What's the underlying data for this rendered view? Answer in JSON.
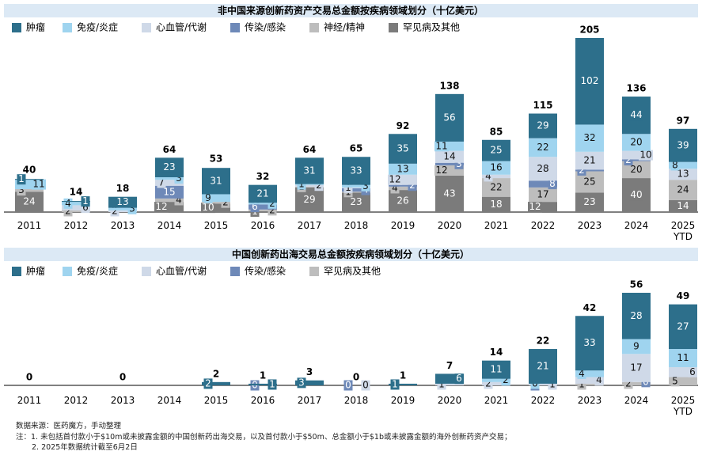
{
  "chart_data": [
    {
      "type": "bar",
      "stacked": true,
      "title": "非中国来源创新药资产交易总金额按疾病领域划分（十亿美元）",
      "categories": [
        "2011",
        "2012",
        "2013",
        "2014",
        "2015",
        "2016",
        "2017",
        "2018",
        "2019",
        "2020",
        "2021",
        "2022",
        "2023",
        "2024",
        "2025\nYTD"
      ],
      "totals": [
        40,
        14,
        18,
        64,
        53,
        32,
        64,
        65,
        92,
        138,
        85,
        115,
        205,
        136,
        97
      ],
      "series": [
        {
          "name": "罕见病及其他",
          "color": "#7b7b7b",
          "values": [
            24,
            null,
            null,
            12,
            10,
            1,
            29,
            23,
            26,
            43,
            18,
            12,
            23,
            40,
            14
          ]
        },
        {
          "name": "神经/精神",
          "color": "#bdbdbd",
          "values": [
            3,
            2,
            null,
            4,
            2,
            2,
            1,
            1,
            4,
            12,
            22,
            17,
            25,
            20,
            24
          ]
        },
        {
          "name": "传染/感染",
          "color": "#6e89b8",
          "values": [
            null,
            null,
            null,
            15,
            null,
            6,
            null,
            4,
            2,
            3,
            null,
            8,
            2,
            2,
            null
          ]
        },
        {
          "name": "心血管/代谢",
          "color": "#cfd9e8",
          "values": [
            null,
            6,
            2,
            7,
            null,
            null,
            2,
            1,
            12,
            14,
            4,
            28,
            21,
            10,
            13
          ]
        },
        {
          "name": "免疫/炎症",
          "color": "#9fd4ef",
          "values": [
            11,
            4,
            3,
            3,
            9,
            2,
            1,
            3,
            13,
            11,
            16,
            22,
            32,
            20,
            8
          ]
        },
        {
          "name": "肿瘤",
          "color": "#2d6f8b",
          "values": [
            1,
            1,
            13,
            23,
            31,
            21,
            31,
            33,
            35,
            56,
            25,
            29,
            102,
            44,
            39
          ]
        }
      ]
    },
    {
      "type": "bar",
      "stacked": true,
      "title": "中国创新药出海交易总金额按疾病领域划分（十亿美元）",
      "categories": [
        "2011",
        "2012",
        "2013",
        "2014",
        "2015",
        "2016",
        "2017",
        "2018",
        "2019",
        "2020",
        "2021",
        "2022",
        "2023",
        "2024",
        "2025\nYTD"
      ],
      "totals": [
        0,
        null,
        0,
        null,
        2,
        1,
        3,
        0,
        1,
        7,
        14,
        22,
        42,
        56,
        49
      ],
      "series": [
        {
          "name": "罕见病及其他",
          "color": "#bdbdbd",
          "values": [
            null,
            null,
            null,
            null,
            null,
            null,
            null,
            null,
            null,
            null,
            null,
            null,
            1,
            2,
            5
          ]
        },
        {
          "name": "传染/感染",
          "color": "#6e89b8",
          "values": [
            null,
            null,
            null,
            null,
            null,
            0,
            null,
            0,
            null,
            null,
            null,
            0,
            null,
            0,
            null
          ]
        },
        {
          "name": "心血管/代谢",
          "color": "#cfd9e8",
          "values": [
            null,
            null,
            null,
            null,
            null,
            null,
            null,
            0,
            null,
            1,
            2,
            1,
            4,
            17,
            6
          ]
        },
        {
          "name": "免疫/炎症",
          "color": "#9fd4ef",
          "values": [
            null,
            null,
            null,
            null,
            null,
            null,
            null,
            null,
            null,
            null,
            2,
            0,
            4,
            9,
            11
          ]
        },
        {
          "name": "肿瘤",
          "color": "#2d6f8b",
          "values": [
            null,
            null,
            null,
            null,
            2,
            1,
            3,
            null,
            1,
            6,
            11,
            21,
            33,
            28,
            27
          ]
        }
      ]
    }
  ],
  "source": "数据来源：医药魔方，手动整理",
  "notes": [
    "注：1. 未包括首付款小于$10m或未披露金额的中国创新药出海交易，以及首付款小于$50m、总金额小于$1b或未披露金额的海外创新药资产交易；",
    "2. 2025年数据统计截至6月2日"
  ]
}
